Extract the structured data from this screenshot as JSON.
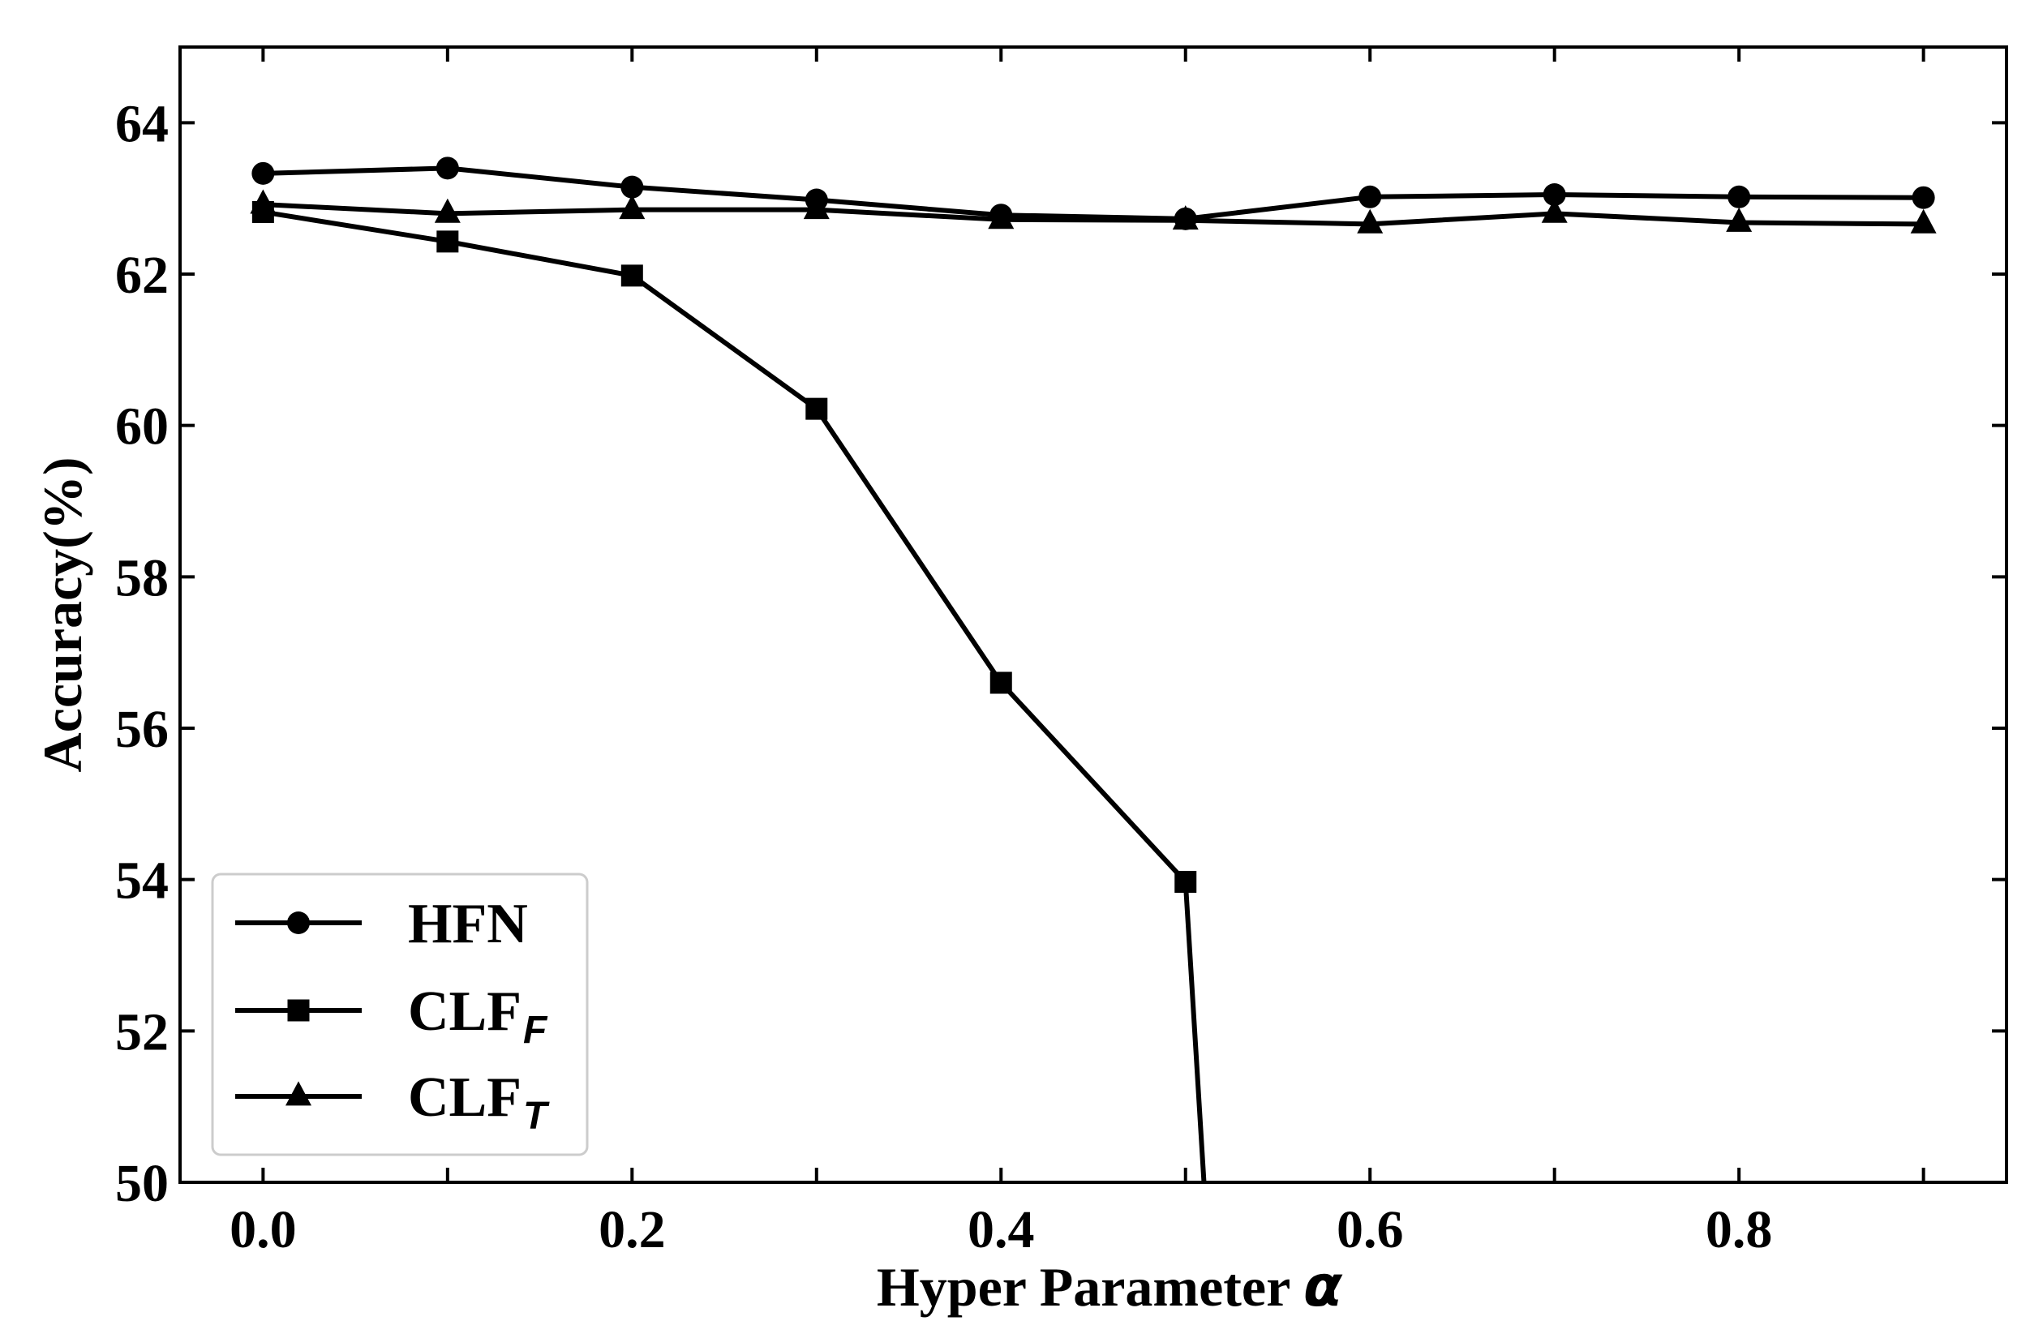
{
  "chart_data": {
    "type": "line",
    "xlabel": "Hyper Parameter",
    "xlabel_symbol": "α",
    "ylabel": "Accuracy(%)",
    "xlim": [
      -0.045,
      0.945
    ],
    "ylim": [
      50,
      65
    ],
    "x_ticks": [
      0.0,
      0.2,
      0.4,
      0.6,
      0.8
    ],
    "x_tick_labels": [
      "0.0",
      "0.2",
      "0.4",
      "0.6",
      "0.8"
    ],
    "x_minor_ticks": [
      0.1,
      0.3,
      0.5,
      0.7,
      0.9
    ],
    "y_ticks": [
      50,
      52,
      54,
      56,
      58,
      60,
      62,
      64
    ],
    "y_tick_labels": [
      "50",
      "52",
      "54",
      "56",
      "58",
      "60",
      "62",
      "64"
    ],
    "grid": false,
    "legend_position": "bottom-left",
    "line_color": "#000000",
    "series": [
      {
        "name": "HFN",
        "name_subscript": "",
        "marker": "circle",
        "x": [
          0.0,
          0.1,
          0.2,
          0.3,
          0.4,
          0.5,
          0.6,
          0.7,
          0.8,
          0.9
        ],
        "values": [
          63.33,
          63.4,
          63.15,
          62.98,
          62.78,
          62.73,
          63.02,
          63.05,
          63.02,
          63.01
        ]
      },
      {
        "name": "CLF",
        "name_subscript": "F",
        "marker": "square",
        "x": [
          0.0,
          0.1,
          0.2,
          0.3,
          0.4,
          0.5,
          0.51
        ],
        "values": [
          62.82,
          62.43,
          61.98,
          60.22,
          56.6,
          53.97,
          50.0
        ]
      },
      {
        "name": "CLF",
        "name_subscript": "T",
        "marker": "triangle",
        "x": [
          0.0,
          0.1,
          0.2,
          0.3,
          0.4,
          0.5,
          0.6,
          0.7,
          0.8,
          0.9
        ],
        "values": [
          62.92,
          62.8,
          62.85,
          62.85,
          62.72,
          62.71,
          62.66,
          62.8,
          62.68,
          62.66
        ]
      }
    ]
  }
}
